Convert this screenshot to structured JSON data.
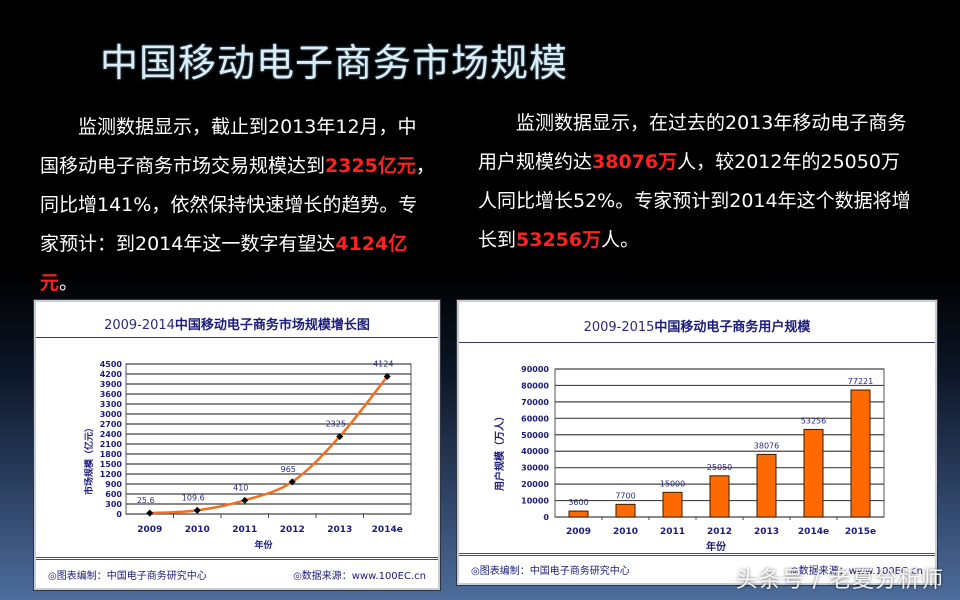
{
  "slide": {
    "title": "中国移动电子商务市场规模",
    "left_paragraph": {
      "segments": [
        {
          "text": "监测数据显示，截止到2013年12月，中国移动电子商务市场交易规模达到",
          "highlight": false
        },
        {
          "text": "2325亿元",
          "highlight": true
        },
        {
          "text": "，同比增141%，依然保持快速增长的趋势。专家预计：到2014年这一数字有望达",
          "highlight": false
        },
        {
          "text": "4124亿元",
          "highlight": true
        },
        {
          "text": "。",
          "highlight": false
        }
      ]
    },
    "right_paragraph": {
      "segments": [
        {
          "text": "监测数据显示，在过去的2013年移动电子商务用户规模约达",
          "highlight": false
        },
        {
          "text": "38076万",
          "highlight": true
        },
        {
          "text": "人，较2012年的25050万人同比增长52%。专家预计到2014年这个数据将增长到",
          "highlight": false
        },
        {
          "text": "53256万",
          "highlight": true
        },
        {
          "text": "人。",
          "highlight": false
        }
      ]
    },
    "highlight_color": "#ff2020",
    "watermark": "头条号 / 老夏分析师"
  },
  "chart_data": [
    {
      "type": "line",
      "title_prefix": "2009-2014",
      "title": "中国移动电子商务市场规模增长图",
      "categories": [
        "2009",
        "2010",
        "2011",
        "2012",
        "2013",
        "2014e"
      ],
      "values": [
        25.6,
        109.6,
        410,
        965,
        2325,
        4124
      ],
      "value_labels": [
        "25.6",
        "109.6",
        "410",
        "965",
        "2325",
        "4124"
      ],
      "xlabel": "年份",
      "ylabel": "市场规模（亿元）",
      "ylim": [
        0,
        4500
      ],
      "yticks": [
        0,
        300,
        600,
        900,
        1200,
        1500,
        1800,
        2100,
        2400,
        2700,
        3000,
        3300,
        3600,
        3900,
        4200,
        4500
      ],
      "grid": true,
      "line_color": "#f07020",
      "footer_left": "◎图表编制：中国电子商务研究中心",
      "footer_right": "◎数据来源：www.100EC.cn"
    },
    {
      "type": "bar",
      "title_prefix": "2009-2015",
      "title": "中国移动电子商务用户规模",
      "categories": [
        "2009",
        "2010",
        "2011",
        "2012",
        "2013",
        "2014e",
        "2015e"
      ],
      "values": [
        3600,
        7700,
        15000,
        25050,
        38076,
        53256,
        77221
      ],
      "value_labels": [
        "3600",
        "7700",
        "15000",
        "25050",
        "38076",
        "53256",
        "77221"
      ],
      "xlabel": "年份",
      "ylabel": "用户规模（万人）",
      "ylim": [
        0,
        90000
      ],
      "yticks": [
        0,
        10000,
        20000,
        30000,
        40000,
        50000,
        60000,
        70000,
        80000,
        90000
      ],
      "grid": true,
      "bar_color": "#ff6a00",
      "footer_left": "◎图表编制：中国电子商务研究中心",
      "footer_right": "◎数据来源：www.100EC.cn"
    }
  ]
}
